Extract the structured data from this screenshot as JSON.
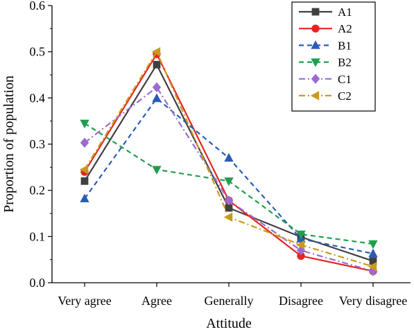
{
  "chart_data": {
    "type": "line",
    "xlabel": "Attitude",
    "ylabel": "Proportion of population",
    "categories": [
      "Very agree",
      "Agree",
      "Generally",
      "Disagree",
      "Very disagree"
    ],
    "ylim": [
      0,
      0.6
    ],
    "yticks": [
      "0.0",
      "0.1",
      "0.2",
      "0.3",
      "0.4",
      "0.5",
      "0.6"
    ],
    "grid": false,
    "legend_position": "top-right",
    "series": [
      {
        "name": "A1",
        "color": "#404040",
        "marker": "square",
        "dash": "solid",
        "values": [
          0.22,
          0.472,
          0.162,
          0.099,
          0.047
        ]
      },
      {
        "name": "A2",
        "color": "#e8231f",
        "marker": "circle",
        "dash": "solid",
        "values": [
          0.24,
          0.495,
          0.178,
          0.058,
          0.025
        ]
      },
      {
        "name": "B1",
        "color": "#2a5bb5",
        "marker": "triangle-up",
        "dash": "dash",
        "values": [
          0.182,
          0.399,
          0.27,
          0.095,
          0.063
        ]
      },
      {
        "name": "B2",
        "color": "#1f9f4e",
        "marker": "triangle-down",
        "dash": "dash",
        "values": [
          0.345,
          0.245,
          0.22,
          0.105,
          0.084
        ]
      },
      {
        "name": "C1",
        "color": "#9b6bd1",
        "marker": "diamond",
        "dash": "dashdot",
        "values": [
          0.303,
          0.423,
          0.178,
          0.07,
          0.025
        ]
      },
      {
        "name": "C2",
        "color": "#c99a1c",
        "marker": "triangle-left",
        "dash": "dashdot",
        "values": [
          0.245,
          0.5,
          0.142,
          0.082,
          0.035
        ]
      }
    ]
  }
}
